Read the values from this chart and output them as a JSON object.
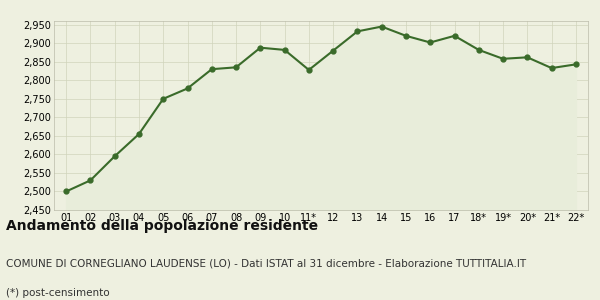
{
  "x_labels": [
    "01",
    "02",
    "03",
    "04",
    "05",
    "06",
    "07",
    "08",
    "09",
    "10",
    "11*",
    "12",
    "13",
    "14",
    "15",
    "16",
    "17",
    "18*",
    "19*",
    "20*",
    "21*",
    "22*"
  ],
  "y_values": [
    2500,
    2530,
    2595,
    2655,
    2750,
    2778,
    2830,
    2835,
    2888,
    2882,
    2828,
    2880,
    2932,
    2945,
    2920,
    2902,
    2920,
    2882,
    2858,
    2862,
    2833,
    2843
  ],
  "line_color": "#3a6b2a",
  "fill_color": "#e8edda",
  "background_color": "#eef0e0",
  "grid_color": "#d0d4bb",
  "fig_background": "#eef0e0",
  "ylim": [
    2450,
    2960
  ],
  "yticks": [
    2450,
    2500,
    2550,
    2600,
    2650,
    2700,
    2750,
    2800,
    2850,
    2900,
    2950
  ],
  "title": "Andamento della popolazione residente",
  "subtitle": "COMUNE DI CORNEGLIANO LAUDENSE (LO) - Dati ISTAT al 31 dicembre - Elaborazione TUTTITALIA.IT",
  "footnote": "(*) post-censimento",
  "title_fontsize": 10,
  "subtitle_fontsize": 7.5,
  "footnote_fontsize": 7.5,
  "tick_fontsize": 7,
  "marker_size": 3.5,
  "line_width": 1.5
}
